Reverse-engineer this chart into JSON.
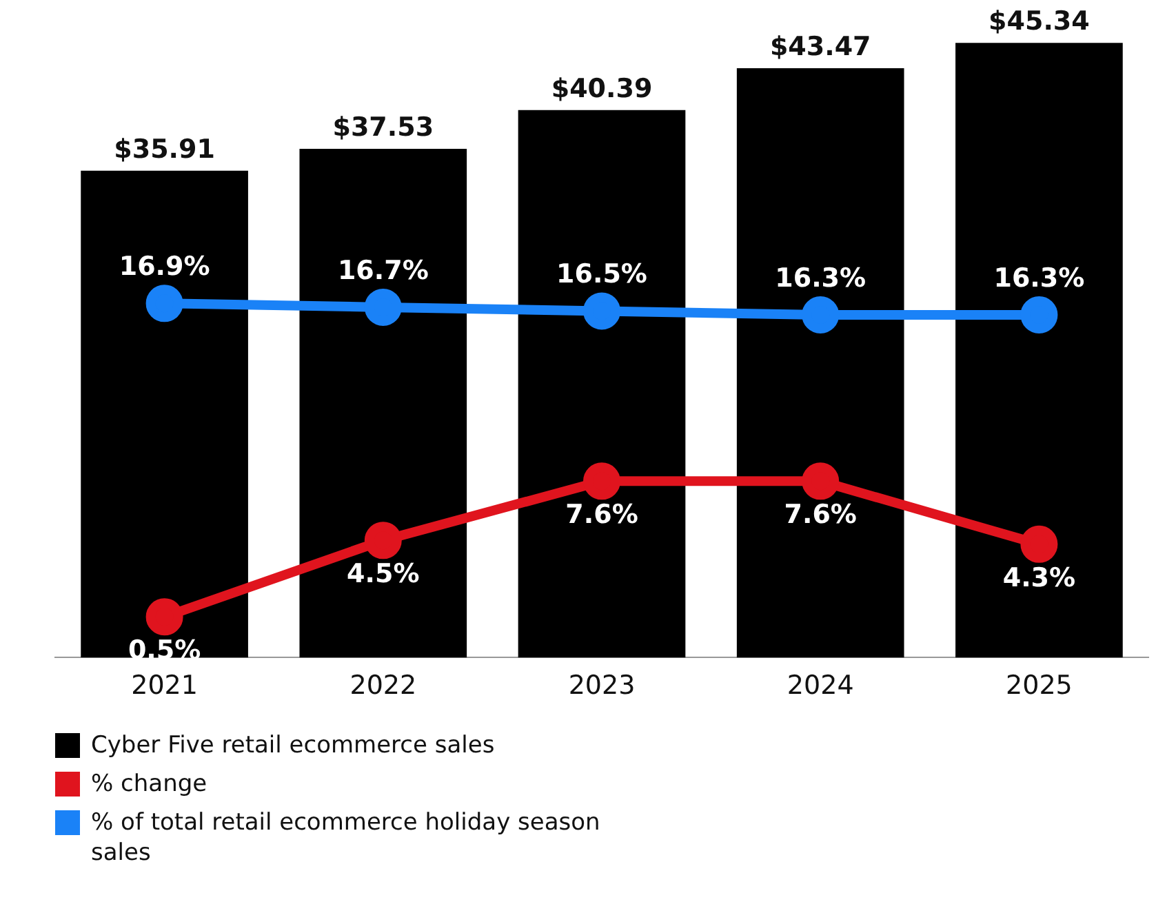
{
  "chart_data": {
    "type": "bar",
    "categories": [
      "2021",
      "2022",
      "2023",
      "2024",
      "2025"
    ],
    "series": [
      {
        "name": "Cyber Five retail ecommerce sales",
        "color": "#000000",
        "values": [
          35.91,
          37.53,
          40.39,
          43.47,
          45.34
        ],
        "value_labels": [
          "$35.91",
          "$37.53",
          "$40.39",
          "$43.47",
          "$45.34"
        ]
      },
      {
        "name": "% change",
        "type": "line",
        "axis": "y2",
        "color": "#e0141e",
        "values": [
          0.5,
          4.5,
          7.6,
          7.6,
          4.3
        ],
        "value_labels": [
          "0.5%",
          "4.5%",
          "7.6%",
          "7.6%",
          "4.3%"
        ]
      },
      {
        "name": "% of total retail ecommerce holiday season sales",
        "type": "line",
        "axis": "y2",
        "color": "#1a82f7",
        "values": [
          16.9,
          16.7,
          16.5,
          16.3,
          16.3
        ],
        "value_labels": [
          "16.9%",
          "16.7%",
          "16.5%",
          "16.3%",
          "16.3%"
        ]
      }
    ],
    "tick_labels": "x",
    "marker": "circle",
    "legend": "bottom",
    "grid": false
  }
}
